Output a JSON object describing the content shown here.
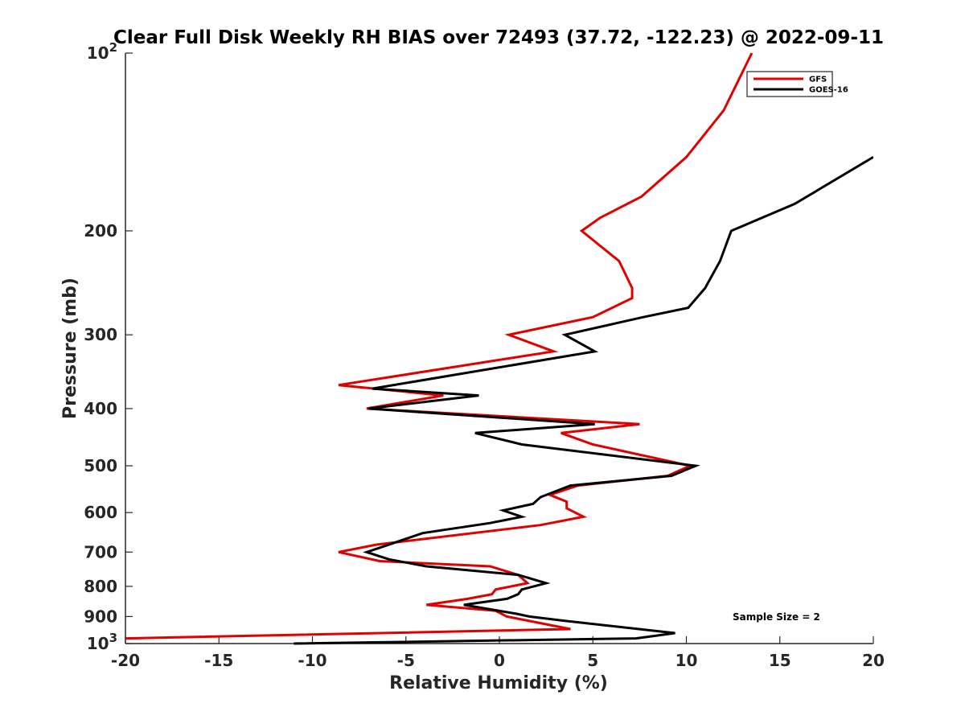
{
  "chart_data": {
    "type": "line",
    "title": "Clear Full Disk Weekly RH BIAS over 72493 (37.72, -122.23) @ 2022-09-11",
    "xlabel": "Relative Humidity (%)",
    "ylabel": "Pressure (mb)",
    "xlim": [
      -20,
      20
    ],
    "ylim": [
      100,
      1000
    ],
    "y_scale": "log",
    "y_reversed": true,
    "x_ticks": [
      "-20",
      "-15",
      "-10",
      "-5",
      "0",
      "5",
      "10",
      "15",
      "20"
    ],
    "y_ticks": [
      {
        "value": 100,
        "label": "10",
        "sup": "2"
      },
      {
        "value": 200,
        "label": "200"
      },
      {
        "value": 300,
        "label": "300"
      },
      {
        "value": 400,
        "label": "400"
      },
      {
        "value": 500,
        "label": "500"
      },
      {
        "value": 600,
        "label": "600"
      },
      {
        "value": 700,
        "label": "700"
      },
      {
        "value": 800,
        "label": "800"
      },
      {
        "value": 900,
        "label": "900"
      },
      {
        "value": 1000,
        "label": "10",
        "sup": "3"
      }
    ],
    "legend_position": "top-right",
    "annotation": "Sample Size = 2",
    "grid": false,
    "series": [
      {
        "name": "GFS",
        "color": "#e00000",
        "points": [
          [
            13.5,
            100
          ],
          [
            12.0,
            125
          ],
          [
            10.0,
            150
          ],
          [
            7.6,
            175
          ],
          [
            5.4,
            190
          ],
          [
            4.4,
            200
          ],
          [
            6.4,
            225
          ],
          [
            7.1,
            250
          ],
          [
            7.1,
            260
          ],
          [
            5.0,
            280
          ],
          [
            0.5,
            300
          ],
          [
            2.9,
            320
          ],
          [
            -8.6,
            365
          ],
          [
            -3.0,
            380
          ],
          [
            -7.1,
            400
          ],
          [
            7.5,
            425
          ],
          [
            3.3,
            440
          ],
          [
            5.0,
            460
          ],
          [
            10.2,
            500
          ],
          [
            9.0,
            520
          ],
          [
            4.2,
            540
          ],
          [
            2.7,
            560
          ],
          [
            3.6,
            575
          ],
          [
            3.6,
            590
          ],
          [
            4.5,
            610
          ],
          [
            2.2,
            630
          ],
          [
            -6.6,
            680
          ],
          [
            -8.6,
            700
          ],
          [
            -6.4,
            725
          ],
          [
            -0.5,
            740
          ],
          [
            1.0,
            765
          ],
          [
            1.5,
            790
          ],
          [
            -0.2,
            810
          ],
          [
            -0.4,
            825
          ],
          [
            -1.7,
            840
          ],
          [
            -3.9,
            860
          ],
          [
            -0.2,
            880
          ],
          [
            0.4,
            900
          ],
          [
            3.8,
            945
          ],
          [
            -20.0,
            980
          ]
        ]
      },
      {
        "name": "GOES-16",
        "color": "#000000",
        "points": [
          [
            20.0,
            150
          ],
          [
            15.8,
            180
          ],
          [
            12.4,
            200
          ],
          [
            11.8,
            225
          ],
          [
            11.0,
            250
          ],
          [
            10.1,
            270
          ],
          [
            7.7,
            280
          ],
          [
            3.5,
            300
          ],
          [
            5.1,
            320
          ],
          [
            -6.8,
            370
          ],
          [
            -1.1,
            380
          ],
          [
            -7.0,
            400
          ],
          [
            5.1,
            425
          ],
          [
            -1.3,
            440
          ],
          [
            1.2,
            460
          ],
          [
            10.5,
            500
          ],
          [
            9.2,
            520
          ],
          [
            3.8,
            540
          ],
          [
            2.2,
            565
          ],
          [
            1.8,
            580
          ],
          [
            0.2,
            595
          ],
          [
            1.2,
            610
          ],
          [
            -0.5,
            625
          ],
          [
            -4.1,
            650
          ],
          [
            -6.5,
            690
          ],
          [
            -7.1,
            700
          ],
          [
            -5.9,
            720
          ],
          [
            -3.9,
            740
          ],
          [
            1.0,
            765
          ],
          [
            2.5,
            790
          ],
          [
            1.2,
            810
          ],
          [
            1.0,
            825
          ],
          [
            0.4,
            840
          ],
          [
            -1.9,
            860
          ],
          [
            0.9,
            890
          ],
          [
            1.6,
            900
          ],
          [
            3.5,
            915
          ],
          [
            9.4,
            960
          ],
          [
            7.3,
            980
          ],
          [
            -11.0,
            1000
          ]
        ]
      }
    ]
  }
}
